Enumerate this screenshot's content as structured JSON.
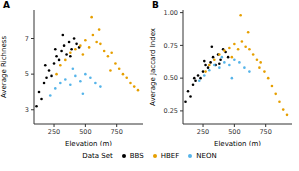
{
  "legend": "bottom",
  "legend_title": "Data Set",
  "chart_data": [
    {
      "type": "scatter",
      "title": "A",
      "x_label": "Elevation (m)",
      "y_label": "Average Richness",
      "xlim": [
        90,
        960
      ],
      "xticks": [
        250,
        500,
        750
      ],
      "ylim": [
        2.2,
        8.6
      ],
      "yticks": [
        3,
        5,
        7
      ],
      "grid": false,
      "marker": "circle",
      "series": [
        {
          "name": "BBS",
          "color": "#000000",
          "x": [
            110,
            130,
            150,
            170,
            190,
            210,
            230,
            250,
            270,
            290,
            310,
            330,
            350,
            370,
            390,
            410,
            430,
            450,
            180,
            260,
            320,
            380
          ],
          "values": [
            3.2,
            4.0,
            3.6,
            4.5,
            4.8,
            5.2,
            4.9,
            5.6,
            6.0,
            5.8,
            6.3,
            6.6,
            6.1,
            6.8,
            6.4,
            7.0,
            6.7,
            6.5,
            5.5,
            6.4,
            7.2,
            6.0
          ]
        },
        {
          "name": "HBEF",
          "color": "#E69F00",
          "x": [
            270,
            300,
            340,
            380,
            420,
            460,
            500,
            530,
            560,
            590,
            620,
            650,
            680,
            710,
            740,
            770,
            800,
            830,
            860,
            890,
            920,
            550,
            610,
            480,
            700
          ],
          "values": [
            5.0,
            5.5,
            5.8,
            6.2,
            6.4,
            6.6,
            6.9,
            6.5,
            7.2,
            6.8,
            6.7,
            6.3,
            6.0,
            6.2,
            5.6,
            5.3,
            5.0,
            4.8,
            4.5,
            4.3,
            4.1,
            8.2,
            7.5,
            6.1,
            5.2
          ]
        },
        {
          "name": "NEON",
          "color": "#56B4E9",
          "x": [
            220,
            260,
            300,
            340,
            380,
            420,
            460,
            500,
            540,
            580,
            620,
            400,
            480
          ],
          "values": [
            3.8,
            4.2,
            4.5,
            4.7,
            4.4,
            4.9,
            4.6,
            5.0,
            4.8,
            4.5,
            4.3,
            5.3,
            3.9
          ]
        }
      ]
    },
    {
      "type": "scatter",
      "title": "B",
      "x_label": "Elevation (m)",
      "y_label": "Average Jaccard Index",
      "xlim": [
        90,
        960
      ],
      "xticks": [
        250,
        500,
        750
      ],
      "ylim": [
        0.15,
        1.02
      ],
      "yticks": [
        0.25,
        {
          "value": 0.5,
          "label": "0.50"
        },
        0.75,
        {
          "value": 1,
          "label": "1.00"
        }
      ],
      "grid": false,
      "marker": "circle",
      "series": [
        {
          "name": "BBS",
          "color": "#000000",
          "x": [
            110,
            130,
            150,
            170,
            190,
            210,
            230,
            250,
            270,
            290,
            310,
            330,
            350,
            370,
            390,
            410,
            430,
            450,
            180,
            260,
            320,
            380
          ],
          "values": [
            0.32,
            0.4,
            0.36,
            0.45,
            0.48,
            0.52,
            0.5,
            0.55,
            0.6,
            0.58,
            0.62,
            0.66,
            0.6,
            0.68,
            0.64,
            0.72,
            0.7,
            0.66,
            0.5,
            0.63,
            0.74,
            0.61
          ]
        },
        {
          "name": "HBEF",
          "color": "#E69F00",
          "x": [
            270,
            300,
            340,
            380,
            420,
            460,
            500,
            530,
            560,
            590,
            620,
            650,
            680,
            710,
            740,
            770,
            800,
            830,
            860,
            890,
            920,
            550,
            610,
            480,
            700
          ],
          "values": [
            0.55,
            0.6,
            0.64,
            0.68,
            0.71,
            0.73,
            0.76,
            0.72,
            0.78,
            0.74,
            0.72,
            0.68,
            0.64,
            0.62,
            0.55,
            0.5,
            0.44,
            0.38,
            0.32,
            0.26,
            0.22,
            0.98,
            0.85,
            0.66,
            0.58
          ]
        },
        {
          "name": "NEON",
          "color": "#56B4E9",
          "x": [
            220,
            260,
            300,
            340,
            380,
            420,
            460,
            500,
            540,
            580,
            620,
            400,
            480
          ],
          "values": [
            0.48,
            0.52,
            0.56,
            0.6,
            0.58,
            0.62,
            0.6,
            0.64,
            0.62,
            0.58,
            0.55,
            0.66,
            0.5
          ]
        }
      ]
    }
  ]
}
